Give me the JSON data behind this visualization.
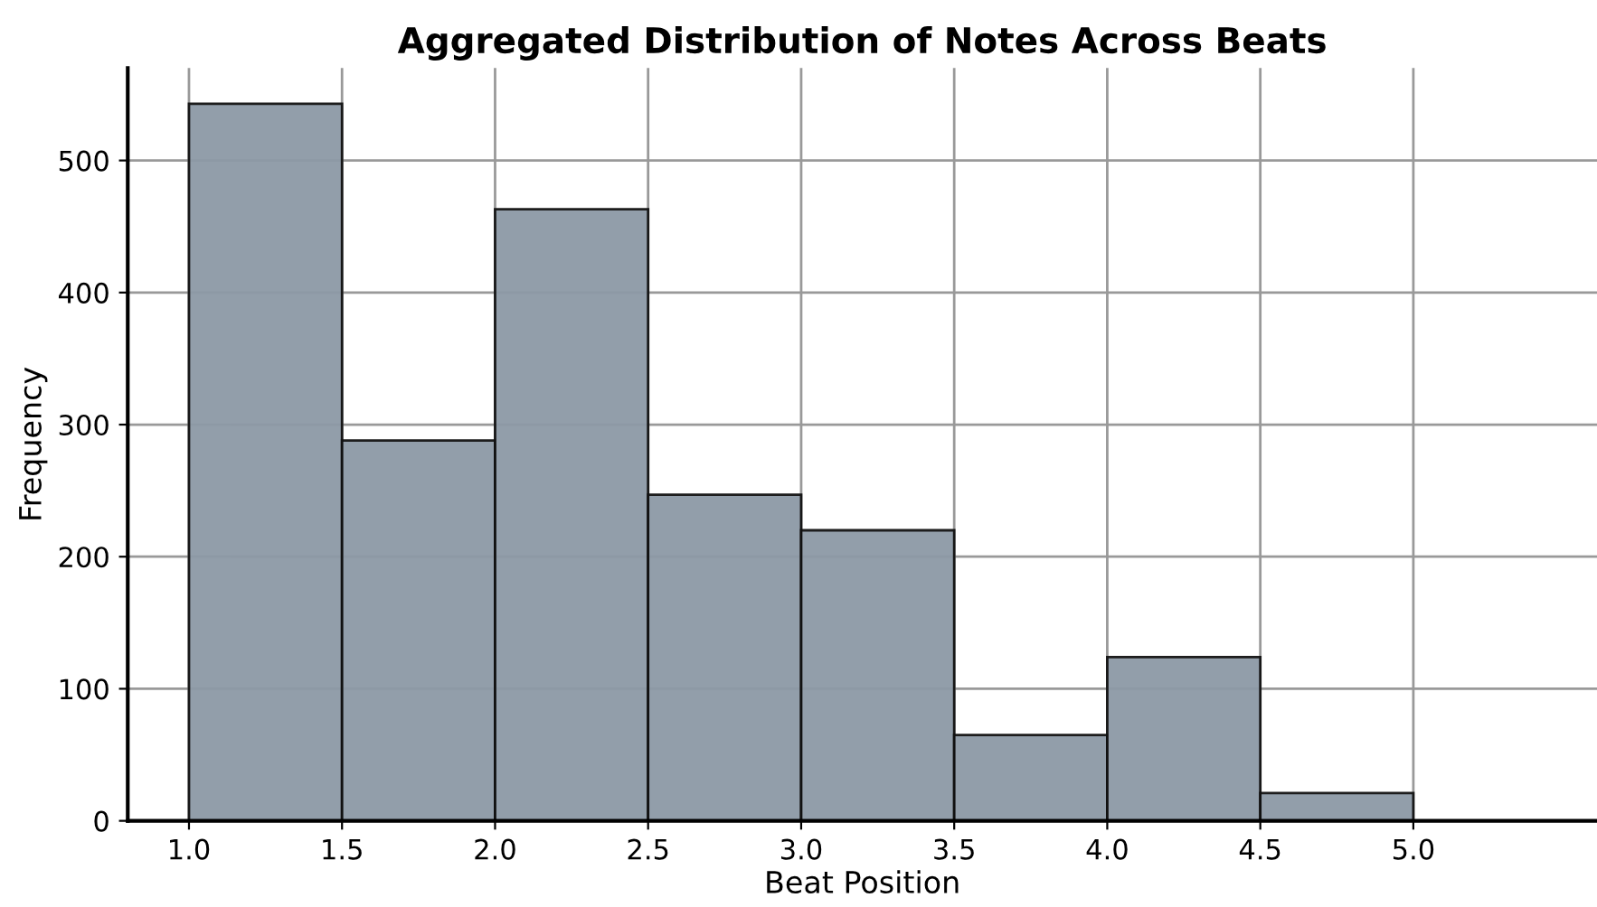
{
  "chart_data": {
    "type": "histogram",
    "title": "Aggregated Distribution of Notes Across Beats",
    "xlabel": "Beat Position",
    "ylabel": "Frequency",
    "bins": [
      1.0,
      1.5,
      2.0,
      2.5,
      3.0,
      3.5,
      4.0,
      4.5,
      5.0
    ],
    "values": [
      543,
      288,
      463,
      247,
      220,
      65,
      124,
      21
    ],
    "color": "#8d99a6",
    "xlim": [
      0.8,
      5.6
    ],
    "ylim": [
      0,
      570
    ],
    "xticks": [
      {
        "value": 1.0,
        "label": "1.0"
      },
      {
        "value": 1.5,
        "label": "1.5"
      },
      {
        "value": 2.0,
        "label": "2.0"
      },
      {
        "value": 2.5,
        "label": "2.5"
      },
      {
        "value": 3.0,
        "label": "3.0"
      },
      {
        "value": 3.5,
        "label": "3.5"
      },
      {
        "value": 4.0,
        "label": "4.0"
      },
      {
        "value": 4.5,
        "label": "4.5"
      },
      {
        "value": 5.0,
        "label": "5.0"
      }
    ],
    "yticks": [
      0,
      100,
      200,
      300,
      400,
      500
    ],
    "grid": true
  }
}
